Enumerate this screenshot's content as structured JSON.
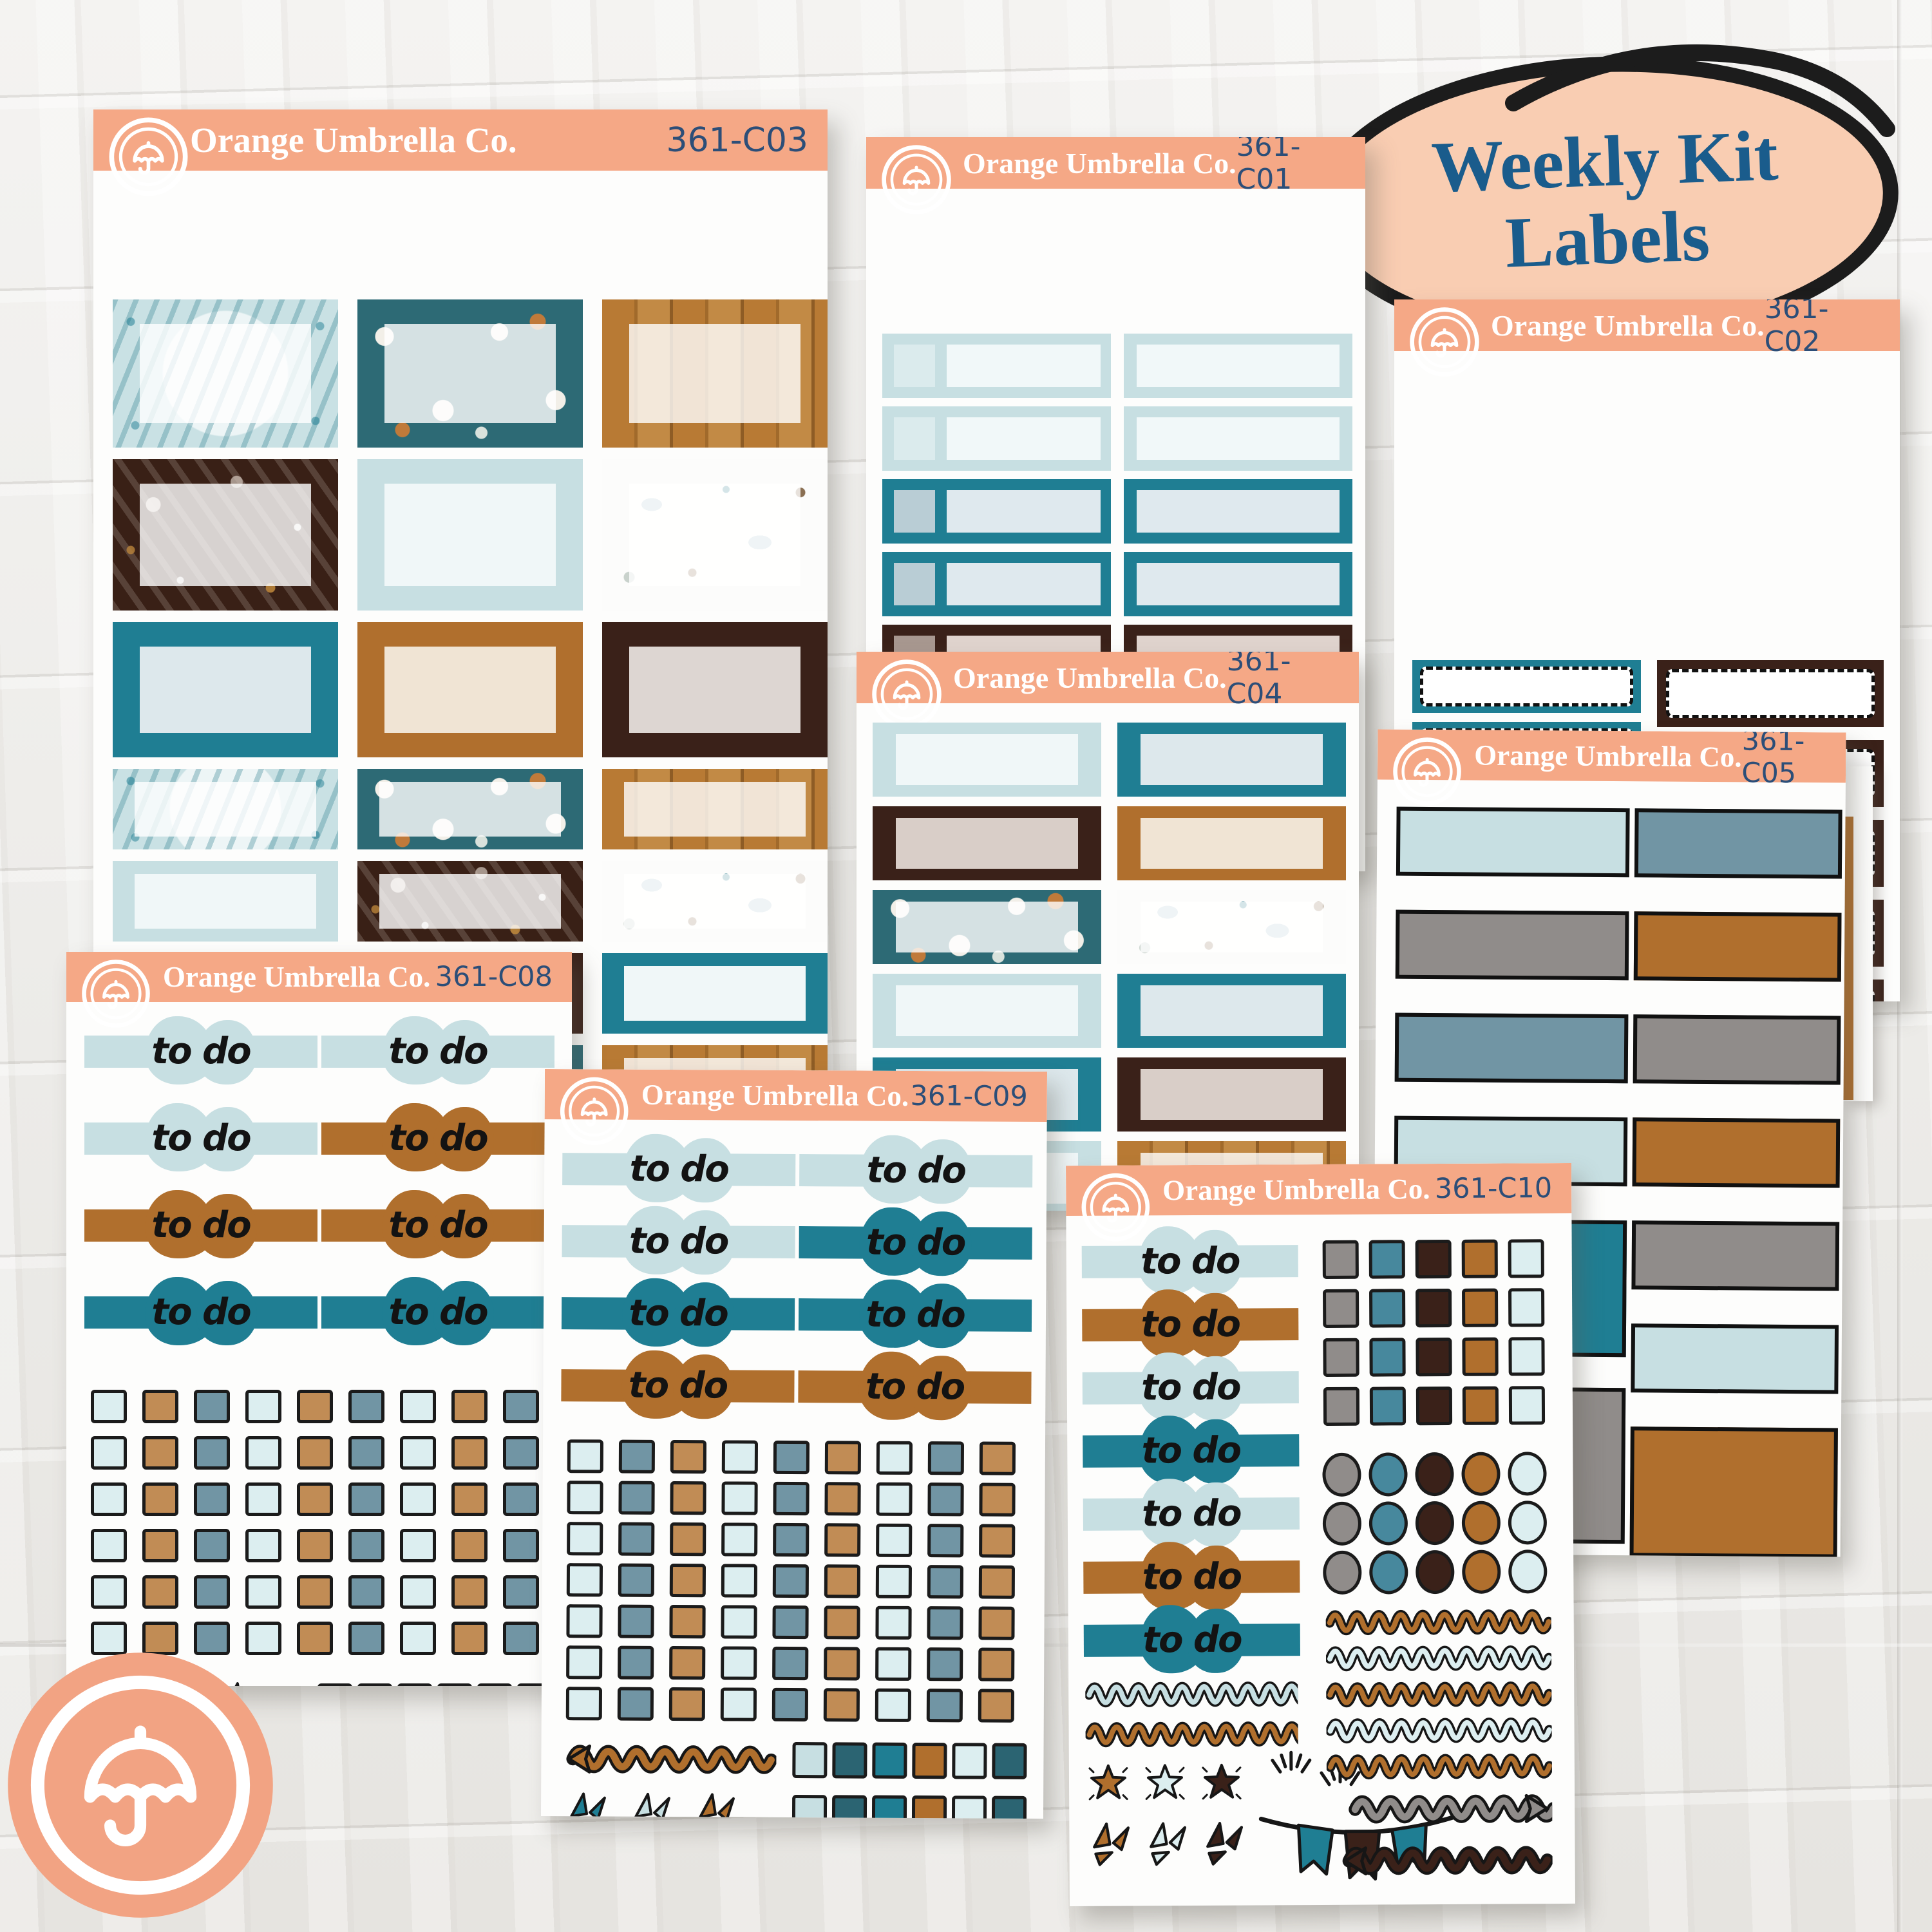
{
  "brand": {
    "name": "Orange Umbrella Co.",
    "logo_icon": "umbrella-icon"
  },
  "badge": {
    "line1": "Weekly Kit",
    "line2": "Labels",
    "bg": "#F9CDB2",
    "text_color": "#1A5C8C",
    "outline_color": "#1C1C1C"
  },
  "todo_label": "to do",
  "palette": {
    "peach": "#F5A886",
    "navy": "#2C4E78",
    "white": "#FFFFFF",
    "teal": "#1F7E93",
    "teal_dark": "#2B6472",
    "steel": "#7195A4",
    "steel2": "#47889D",
    "blue_light": "#C7DFE2",
    "blue_pale": "#DCEEF0",
    "ice": "#F0F7F8",
    "caramel": "#B06F2D",
    "tan": "#C18C55",
    "brown": "#3A2119",
    "gray": "#908C8A",
    "gray_light": "#D8D5D3",
    "inner_teal": "#DDE8EC",
    "inner_brown": "#DDD6D2",
    "inner_brown2": "#D9CEC8",
    "cream": "#F0E4D4",
    "inner_gray": "#EAE8E6",
    "frost": "rgba(255,255,255,0.8)"
  },
  "appointment_styles": {
    "blue_light": {
      "inner": "#F1F8F9",
      "sq": "#DBEBED"
    },
    "teal": {
      "inner": "#DFE9EE",
      "sq": "#B9CDD5"
    },
    "brown": {
      "inner": "#E0D4CE",
      "sq": "#A89890"
    },
    "gray": {
      "inner": "#ECEAE8",
      "sq": "#D5D2D0"
    }
  },
  "sheets": [
    {
      "code": "361-C03",
      "kind": "fullboxes",
      "rows": [
        [
          "snow",
          "forest",
          "wood"
        ],
        [
          "floral",
          "blue_light:ice",
          "birds"
        ],
        [
          "teal:inner_teal",
          "caramel:cream",
          "brown:inner_brown"
        ],
        [
          "snow",
          "forest",
          "wood"
        ],
        [
          "blue_light:ice",
          "floral",
          "birds"
        ],
        [
          "caramel:cream",
          "brown:inner_brown",
          "teal:ice"
        ],
        [
          "snow",
          "forest",
          "wood"
        ],
        [
          "caramel:cream",
          "brown:inner_brown",
          "blue_light:ice"
        ]
      ]
    },
    {
      "code": "361-C01",
      "kind": "appointments",
      "rows": [
        "blue_light",
        "blue_light",
        "teal",
        "teal",
        "brown",
        "brown",
        "gray"
      ]
    },
    {
      "code": "361-C02",
      "kind": "dashed",
      "left": [
        "teal",
        "teal",
        "teal",
        "teal",
        "teal",
        "teal",
        "gray"
      ],
      "right": [
        "brown",
        "brown",
        "brown",
        "brown",
        "brown",
        "gray"
      ]
    },
    {
      "code": "361-C04",
      "kind": "quarters",
      "rows": [
        [
          "blue_light:ice",
          "teal:inner_teal"
        ],
        [
          "brown:inner_brown2",
          "caramel:cream"
        ],
        [
          "forest",
          "birds"
        ],
        [
          "blue_light:ice",
          "teal:inner_teal"
        ],
        [
          "teal:inner_teal",
          "brown:inner_brown2"
        ],
        [
          "blue_light:ice",
          "wood"
        ]
      ]
    },
    {
      "code": "361-C05",
      "kind": "solids",
      "left": [
        [
          "blue_light",
          95
        ],
        [
          "gray",
          95
        ],
        [
          "steel",
          95
        ],
        [
          "blue_light",
          95
        ],
        [
          "teal",
          200
        ],
        [
          "gray",
          230
        ]
      ],
      "right": [
        [
          "steel",
          95
        ],
        [
          "caramel",
          95
        ],
        [
          "gray",
          95
        ],
        [
          "caramel",
          95
        ],
        [
          "gray",
          95
        ],
        [
          "blue_light",
          95
        ],
        [
          "caramel",
          190
        ]
      ]
    },
    {
      "code": "361-C08",
      "kind": "todosheet",
      "todo_rows": [
        [
          "blue_light",
          "blue_light"
        ],
        [
          "blue_light",
          "caramel"
        ],
        [
          "caramel",
          "caramel"
        ],
        [
          "teal",
          "teal"
        ]
      ],
      "check_cols": [
        "blue_pale",
        "tan",
        "steel"
      ],
      "check_rows": 6,
      "bottom_bursts": [
        "caramel",
        "blue_light",
        "teal"
      ],
      "bottom_squares": [
        "blue_light",
        "teal_dark",
        "caramel",
        "teal",
        "blue_pale",
        "teal_dark"
      ]
    },
    {
      "code": "361-C09",
      "kind": "todosheet",
      "todo_rows": [
        [
          "blue_light",
          "blue_light"
        ],
        [
          "blue_light",
          "teal"
        ],
        [
          "teal",
          "teal"
        ],
        [
          "caramel",
          "caramel"
        ]
      ],
      "check_cols": [
        "blue_pale",
        "steel",
        "tan"
      ],
      "check_rows": 7,
      "arrow": {
        "color": "caramel",
        "dir": "left"
      },
      "arrow_squares": [
        "blue_light",
        "teal_dark",
        "teal",
        "caramel",
        "blue_pale",
        "teal_dark"
      ],
      "bottom_bursts": [
        "teal",
        "blue_light",
        "caramel"
      ],
      "bottom_squares": [
        "blue_light",
        "teal_dark",
        "teal",
        "caramel",
        "blue_pale",
        "teal_dark"
      ]
    },
    {
      "code": "361-C10",
      "kind": "samplersheet",
      "todos": [
        "blue_light",
        "caramel",
        "blue_light",
        "teal",
        "blue_light",
        "caramel",
        "teal"
      ],
      "grid_cols": [
        "gray",
        "steel2",
        "brown",
        "caramel",
        "blue_pale"
      ],
      "square_rows": 4,
      "circle_rows": 3,
      "left_squiggles": [
        "blue_light",
        "caramel"
      ],
      "right_squiggles": [
        "caramel",
        "blue_pale",
        "caramel",
        "blue_pale",
        "caramel"
      ],
      "stars": [
        "caramel",
        "blue_pale",
        "brown"
      ],
      "bursts": [
        "caramel",
        "blue_pale",
        "brown"
      ],
      "banner_flags": [
        "teal",
        "brown",
        "teal"
      ],
      "arrows": [
        {
          "color": "gray",
          "dir": "right"
        },
        {
          "color": "brown",
          "dir": "left"
        }
      ]
    }
  ]
}
